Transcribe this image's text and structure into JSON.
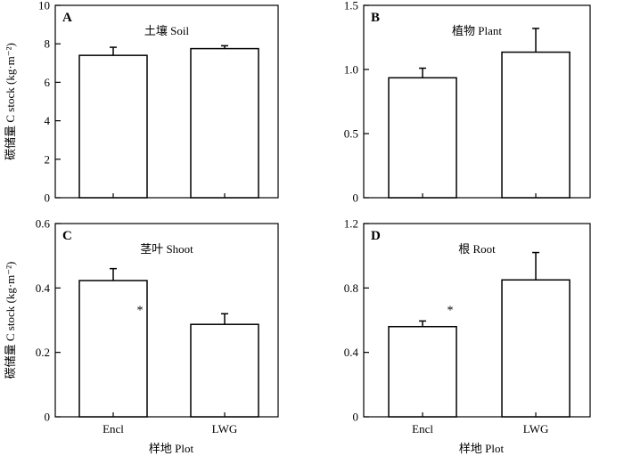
{
  "chart_data": [
    {
      "type": "bar",
      "panel_label": "A",
      "title": "土壤 Soil",
      "categories": [
        "Encl",
        "LWG"
      ],
      "values": [
        7.4,
        7.75
      ],
      "errors": [
        0.42,
        0.15
      ],
      "ylim": [
        0,
        10
      ],
      "yticks": [
        "0",
        "2",
        "4",
        "6",
        "8",
        "10"
      ],
      "ylabel": "碳储量 C stock (kg·m⁻²)",
      "xlabel": "",
      "annotation": ""
    },
    {
      "type": "bar",
      "panel_label": "B",
      "title": "植物 Plant",
      "categories": [
        "Encl",
        "LWG"
      ],
      "values": [
        0.935,
        1.135
      ],
      "errors": [
        0.075,
        0.185
      ],
      "ylim": [
        0,
        1.5
      ],
      "yticks": [
        "0",
        "0.5",
        "1.0",
        "1.5"
      ],
      "ylabel": "",
      "xlabel": "",
      "annotation": ""
    },
    {
      "type": "bar",
      "panel_label": "C",
      "title": "茎叶 Shoot",
      "categories": [
        "Encl",
        "LWG"
      ],
      "values": [
        0.423,
        0.287
      ],
      "errors": [
        0.037,
        0.033
      ],
      "ylim": [
        0,
        0.6
      ],
      "yticks": [
        "0",
        "0.2",
        "0.4",
        "0.6"
      ],
      "ylabel": "碳储量 C stock (kg·m⁻²)",
      "xlabel": "样地 Plot",
      "annotation": "*"
    },
    {
      "type": "bar",
      "panel_label": "D",
      "title": "根 Root",
      "categories": [
        "Encl",
        "LWG"
      ],
      "values": [
        0.56,
        0.85
      ],
      "errors": [
        0.035,
        0.17
      ],
      "ylim": [
        0,
        1.2
      ],
      "yticks": [
        "0",
        "0.4",
        "0.8",
        "1.2"
      ],
      "ylabel": "",
      "xlabel": "样地 Plot",
      "annotation": "*"
    }
  ]
}
